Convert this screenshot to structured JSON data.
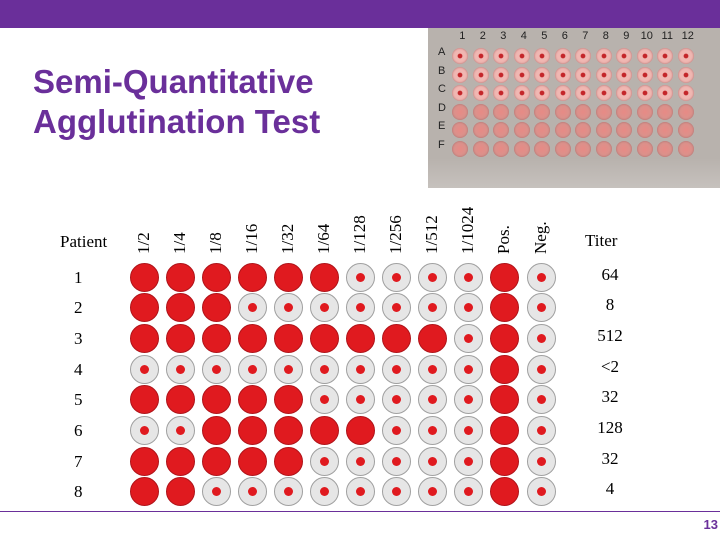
{
  "slide": {
    "title_line1": "Semi-Quantitative",
    "title_line2": "Agglutination Test",
    "page_number": "13",
    "accent_color": "#6a2f9a",
    "agglutinated_color": "#e01a1f",
    "button_color": "#e6e6e6"
  },
  "plate_photo": {
    "column_labels": [
      "1",
      "2",
      "3",
      "4",
      "5",
      "6",
      "7",
      "8",
      "9",
      "10",
      "11",
      "12"
    ],
    "row_labels": [
      "A",
      "B",
      "C",
      "D",
      "E",
      "F"
    ],
    "wells": [
      [
        "dot",
        "dot",
        "dot",
        "dot",
        "dot",
        "dot",
        "dot",
        "dot",
        "dot",
        "dot",
        "dot",
        "dot"
      ],
      [
        "dot",
        "dot",
        "dot",
        "dot",
        "dot",
        "dot",
        "dot",
        "dot",
        "dot",
        "dot",
        "dot",
        "dot"
      ],
      [
        "dot",
        "dot",
        "dot",
        "dot",
        "dot",
        "dot",
        "dot",
        "dot",
        "dot",
        "dot",
        "dot",
        "dot"
      ],
      [
        "diffuse",
        "diffuse",
        "diffuse",
        "diffuse",
        "diffuse",
        "diffuse",
        "diffuse",
        "diffuse",
        "diffuse",
        "diffuse",
        "diffuse",
        "diffuse"
      ],
      [
        "diffuse",
        "diffuse",
        "diffuse",
        "diffuse",
        "diffuse",
        "diffuse",
        "diffuse",
        "diffuse",
        "diffuse",
        "diffuse",
        "diffuse",
        "diffuse"
      ],
      [
        "diffuse",
        "diffuse",
        "diffuse",
        "diffuse",
        "diffuse",
        "diffuse",
        "diffuse",
        "diffuse",
        "diffuse",
        "diffuse",
        "diffuse",
        "diffuse"
      ]
    ]
  },
  "table": {
    "patient_header": "Patient",
    "titer_header": "Titer",
    "dilution_headers": [
      "1/2",
      "1/4",
      "1/8",
      "1/16",
      "1/32",
      "1/64",
      "1/128",
      "1/256",
      "1/512",
      "1/1024",
      "Pos.",
      "Neg."
    ],
    "rows": [
      {
        "patient": "1",
        "titer": "64",
        "wells": [
          "pos",
          "pos",
          "pos",
          "pos",
          "pos",
          "pos",
          "neg",
          "neg",
          "neg",
          "neg",
          "pos",
          "neg"
        ]
      },
      {
        "patient": "2",
        "titer": "8",
        "wells": [
          "pos",
          "pos",
          "pos",
          "neg",
          "neg",
          "neg",
          "neg",
          "neg",
          "neg",
          "neg",
          "pos",
          "neg"
        ]
      },
      {
        "patient": "3",
        "titer": "512",
        "wells": [
          "pos",
          "pos",
          "pos",
          "pos",
          "pos",
          "pos",
          "pos",
          "pos",
          "pos",
          "neg",
          "pos",
          "neg"
        ]
      },
      {
        "patient": "4",
        "titer": "<2",
        "wells": [
          "neg",
          "neg",
          "neg",
          "neg",
          "neg",
          "neg",
          "neg",
          "neg",
          "neg",
          "neg",
          "pos",
          "neg"
        ]
      },
      {
        "patient": "5",
        "titer": "32",
        "wells": [
          "pos",
          "pos",
          "pos",
          "pos",
          "pos",
          "neg",
          "neg",
          "neg",
          "neg",
          "neg",
          "pos",
          "neg"
        ]
      },
      {
        "patient": "6",
        "titer": "128",
        "wells": [
          "neg",
          "neg",
          "pos",
          "pos",
          "pos",
          "pos",
          "pos",
          "neg",
          "neg",
          "neg",
          "pos",
          "neg"
        ]
      },
      {
        "patient": "7",
        "titer": "32",
        "wells": [
          "pos",
          "pos",
          "pos",
          "pos",
          "pos",
          "neg",
          "neg",
          "neg",
          "neg",
          "neg",
          "pos",
          "neg"
        ]
      },
      {
        "patient": "8",
        "titer": "4",
        "wells": [
          "pos",
          "pos",
          "neg",
          "neg",
          "neg",
          "neg",
          "neg",
          "neg",
          "neg",
          "neg",
          "pos",
          "neg"
        ]
      }
    ]
  }
}
